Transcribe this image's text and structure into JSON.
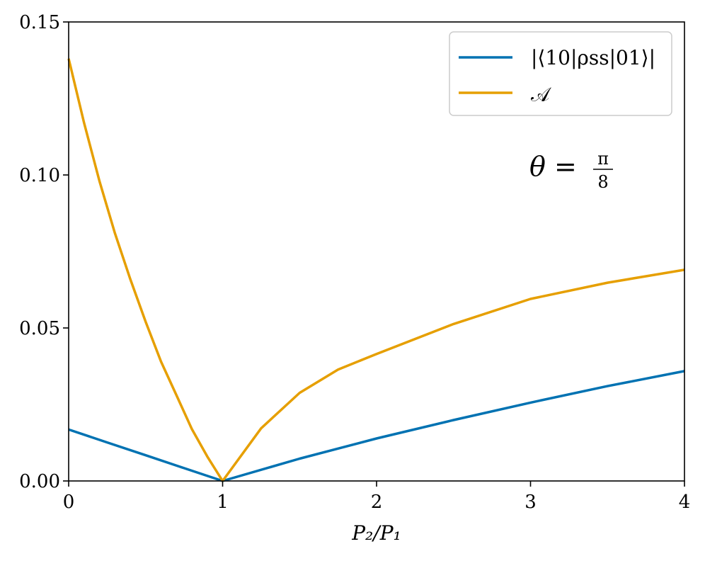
{
  "chart_data": {
    "type": "line",
    "xlabel": "P₂/P₁",
    "ylabel": "",
    "xlim": [
      0,
      4
    ],
    "ylim": [
      0,
      0.15
    ],
    "x_ticks": [
      0,
      1,
      2,
      3,
      4
    ],
    "x_tick_labels": [
      "0",
      "1",
      "2",
      "3",
      "4"
    ],
    "y_ticks": [
      0,
      0.05,
      0.1,
      0.15
    ],
    "y_tick_labels": [
      "0.00",
      "0.05",
      "0.10",
      "0.15"
    ],
    "grid": false,
    "legend_position": "top-right",
    "annotation": {
      "lhs": "θ =",
      "frac_num": "π",
      "frac_den": "8"
    },
    "series": [
      {
        "name": "|⟨10|ρss|01⟩|",
        "color": "#0072B2",
        "x": [
          0,
          0.25,
          0.5,
          0.75,
          1,
          1.5,
          2,
          2.5,
          3,
          3.5,
          4
        ],
        "y": [
          0.0168,
          0.0126,
          0.0084,
          0.0042,
          0.0,
          0.0073,
          0.0139,
          0.0199,
          0.0256,
          0.031,
          0.0359
        ]
      },
      {
        "name": "𝒜",
        "color": "#E69F00",
        "x": [
          0,
          0.1,
          0.2,
          0.3,
          0.4,
          0.5,
          0.6,
          0.7,
          0.8,
          0.9,
          1,
          1.25,
          1.5,
          1.75,
          2,
          2.5,
          3,
          3.5,
          4
        ],
        "y": [
          0.138,
          0.117,
          0.098,
          0.081,
          0.066,
          0.052,
          0.039,
          0.028,
          0.017,
          0.008,
          0.0,
          0.0172,
          0.0288,
          0.0364,
          0.0415,
          0.0513,
          0.0595,
          0.0648,
          0.069
        ]
      }
    ]
  }
}
